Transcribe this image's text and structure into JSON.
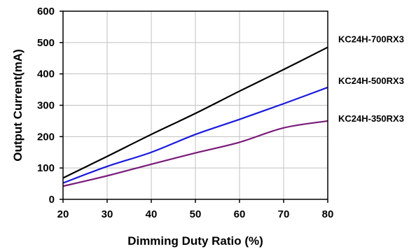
{
  "chart_data": {
    "type": "line",
    "title": "",
    "xlabel": "Dimming Duty Ratio (%)",
    "ylabel": "Output Current(mA)",
    "x": [
      20,
      30,
      40,
      50,
      60,
      70,
      80
    ],
    "xlim": [
      20,
      80
    ],
    "ylim": [
      0,
      600
    ],
    "xticks": [
      "20",
      "30",
      "40",
      "50",
      "60",
      "70",
      "80"
    ],
    "yticks": [
      "0",
      "100",
      "200",
      "300",
      "400",
      "500",
      "600"
    ],
    "grid": true,
    "legend": "end-of-line labels, right",
    "series": [
      {
        "name": "KC24H-700RX3",
        "color": "#000000",
        "values": [
          68,
          137,
          207,
          274,
          345,
          414,
          485
        ]
      },
      {
        "name": "KC24H-500RX3",
        "color": "#1a1adc",
        "values": [
          52,
          105,
          150,
          207,
          255,
          305,
          357
        ]
      },
      {
        "name": "KC24H-350RX3",
        "color": "#7a1a7a",
        "values": [
          42,
          75,
          112,
          148,
          182,
          228,
          250
        ]
      }
    ]
  }
}
